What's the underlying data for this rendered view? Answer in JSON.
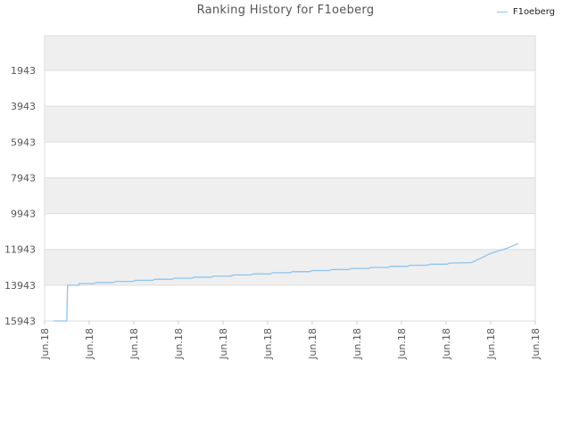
{
  "chart_data": {
    "type": "line",
    "title": "Ranking History for F1oeberg",
    "xlabel": "",
    "ylabel": "",
    "y_reversed": true,
    "ylim": [
      15943,
      0
    ],
    "y_ticks": [
      1943,
      3943,
      5943,
      7943,
      9943,
      11943,
      13943,
      15943
    ],
    "x_tick_labels": [
      "Jun.18",
      "Jun.18",
      "Jun.18",
      "Jun.18",
      "Jun.18",
      "Jun.18",
      "Jun.18",
      "Jun.18",
      "Jun.18",
      "Jun.18",
      "Jun.18",
      "Jun.18"
    ],
    "grid": true,
    "legend_position": "top-right",
    "series": [
      {
        "name": "F1oeberg",
        "color": "#8ec4f0",
        "points": [
          [
            0.018,
            15943
          ],
          [
            0.045,
            15943
          ],
          [
            0.047,
            13943
          ],
          [
            0.07,
            13943
          ],
          [
            0.07,
            13850
          ],
          [
            0.1,
            13850
          ],
          [
            0.105,
            13790
          ],
          [
            0.14,
            13790
          ],
          [
            0.145,
            13730
          ],
          [
            0.18,
            13730
          ],
          [
            0.185,
            13670
          ],
          [
            0.22,
            13670
          ],
          [
            0.225,
            13610
          ],
          [
            0.26,
            13610
          ],
          [
            0.265,
            13550
          ],
          [
            0.3,
            13550
          ],
          [
            0.305,
            13490
          ],
          [
            0.34,
            13490
          ],
          [
            0.345,
            13430
          ],
          [
            0.38,
            13430
          ],
          [
            0.385,
            13370
          ],
          [
            0.42,
            13370
          ],
          [
            0.425,
            13310
          ],
          [
            0.46,
            13310
          ],
          [
            0.465,
            13250
          ],
          [
            0.5,
            13250
          ],
          [
            0.505,
            13190
          ],
          [
            0.54,
            13190
          ],
          [
            0.545,
            13130
          ],
          [
            0.58,
            13130
          ],
          [
            0.585,
            13070
          ],
          [
            0.62,
            13070
          ],
          [
            0.625,
            13010
          ],
          [
            0.66,
            13010
          ],
          [
            0.665,
            12950
          ],
          [
            0.7,
            12950
          ],
          [
            0.705,
            12890
          ],
          [
            0.74,
            12890
          ],
          [
            0.745,
            12830
          ],
          [
            0.78,
            12830
          ],
          [
            0.785,
            12770
          ],
          [
            0.82,
            12770
          ],
          [
            0.825,
            12710
          ],
          [
            0.87,
            12680
          ],
          [
            0.91,
            12150
          ],
          [
            0.94,
            11900
          ],
          [
            0.965,
            11620
          ]
        ]
      }
    ]
  }
}
